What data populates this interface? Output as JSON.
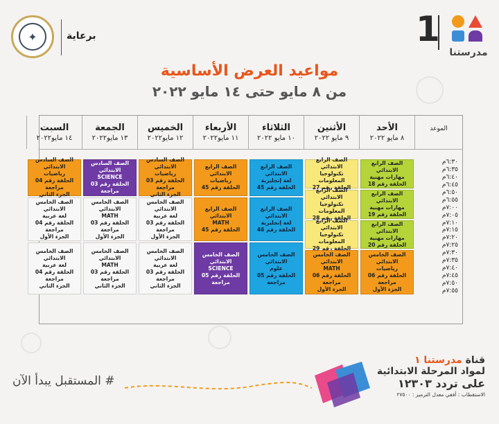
{
  "header": {
    "sponsor_text": "برعاية",
    "ministry_logo_icon": "ministry-seal-icon",
    "brand_number": "1",
    "brand_name": "مدرستنا",
    "brand_colors": [
      "#e94b35",
      "#f39a1c",
      "#3b8ed6",
      "#6e3aa3",
      "#b5d43a"
    ]
  },
  "title": "مواعيد العرض الأساسية",
  "subtitle": "من ٨ مايو حتى ١٤ مايو ٢٠٢٢",
  "table": {
    "time_header": "الموعد",
    "days": [
      {
        "name": "الأحد",
        "date": "٨ مايو ٢٠٢٢"
      },
      {
        "name": "الأثنين",
        "date": "٩ مايو ٢٠٢٢"
      },
      {
        "name": "الثلاثاء",
        "date": "١٠ مايو ٢٠٢٢"
      },
      {
        "name": "الأربعاء",
        "date": "١١ مايو٢٠٢٢"
      },
      {
        "name": "الخميس",
        "date": "١٢ مايو٢٠٢٢"
      },
      {
        "name": "الجمعة",
        "date": "١٣ مايو٢٠٢٢"
      },
      {
        "name": "السبت",
        "date": "١٤ مايو٢٠٢٢"
      }
    ],
    "times": [
      "٦:٣٠م",
      "٦:٣٥م",
      "٦:٤٠م",
      "٦:٤٥م",
      "٦:٥٠م",
      "٦:٥٥م",
      "٧:٠٠م",
      "٧:٠٥م",
      "٧:١٠م",
      "٧:١٥م",
      "٧:٢٠م",
      "٧:٢٥م",
      "٧:٣٠م",
      "٧:٣٥م",
      "٧:٤٠م",
      "٧:٤٥م",
      "٧:٥٠م",
      "٧:٥٥م"
    ],
    "columns": [
      [
        {
          "color": "green",
          "lines": [
            "الصف الرابع الابتدائي",
            "مهارات مهنية",
            "الحلقة رقم 18"
          ]
        },
        {
          "color": "green",
          "lines": [
            "الصف الرابع الابتدائي",
            "مهارات مهنية",
            "الحلقة رقم 19"
          ]
        },
        {
          "color": "green",
          "lines": [
            "الصف الرابع الابتدائي",
            "مهارات مهنية",
            "الحلقة رقم 20"
          ]
        },
        {
          "color": "orange",
          "lines": [
            "الصف الخامس الابتدائي",
            "رياضيات",
            "الحلقة رقم 06 مراجعة",
            "الجزء الأول"
          ]
        }
      ],
      [
        {
          "color": "yellow",
          "lines": [
            "الصف الرابع الابتدائي",
            "تكنولوجيا المعلومات",
            "الحلقة رقم 27"
          ]
        },
        {
          "color": "yellow",
          "lines": [
            "الصف الرابع الابتدائي",
            "تكنولوجيا المعلومات",
            "الحلقة رقم 28"
          ]
        },
        {
          "color": "yellow",
          "lines": [
            "الصف الرابع الابتدائي",
            "تكنولوجيا المعلومات",
            "الحلقة رقم 29"
          ]
        },
        {
          "color": "orange",
          "lines": [
            "الصف الخامس الابتدائي",
            "MATH",
            "الحلقة رقم 06 مراجعة",
            "الجزء الأول"
          ]
        }
      ],
      [
        {
          "color": "blue",
          "lines": [
            "الصف الرابع الابتدائي",
            "لغة إنجليزية",
            "الحلقة رقم 45"
          ]
        },
        {
          "color": "blue",
          "lines": [
            "الصف الرابع الابتدائي",
            "لغة إنجليزية",
            "الحلقة رقم 46"
          ]
        },
        {
          "color": "blue",
          "lines": [
            "الصف الخامس الابتدائي",
            "علوم",
            "الحلقة رقم 05 مراجعة"
          ]
        }
      ],
      [
        {
          "color": "orange",
          "lines": [
            "الصف الرابع الابتدائي",
            "رياضيات",
            "الحلقة رقم 45"
          ]
        },
        {
          "color": "orange",
          "lines": [
            "الصف الرابع الابتدائي",
            "MATH",
            "الحلقة رقم 45"
          ]
        },
        {
          "color": "purple",
          "lines": [
            "الصف الخامس الابتدائي",
            "SCIENCE",
            "الحلقة رقم 05 مراجعة"
          ]
        }
      ],
      [
        {
          "color": "orange",
          "lines": [
            "الصف السادس الابتدائي",
            "رياضيات",
            "الحلقة رقم 03 مراجعة",
            "الجزء الثاني"
          ]
        },
        {
          "color": "white",
          "lines": [
            "الصف الخامس الابتدائي",
            "لغة عربية",
            "الحلقة رقم 03 مراجعة",
            "الجزء الأول"
          ]
        },
        {
          "color": "white",
          "lines": [
            "الصف الخامس الابتدائي",
            "لغة عربية",
            "الحلقة رقم 03 مراجعة",
            "الجزء الثاني"
          ]
        }
      ],
      [
        {
          "color": "purple",
          "lines": [
            "الصف السادس الابتدائي",
            "SCIENCE",
            "الحلقة رقم 03 مراجعة"
          ]
        },
        {
          "color": "white",
          "lines": [
            "الصف الخامس الابتدائي",
            "MATH",
            "الحلقة رقم 03 مراجعة",
            "الجزء الأول"
          ]
        },
        {
          "color": "white",
          "lines": [
            "الصف الخامس الابتدائي",
            "MATH",
            "الحلقة رقم 03 مراجعة",
            "الجزء الثاني"
          ]
        }
      ],
      [
        {
          "color": "orange",
          "lines": [
            "الصف السادس الابتدائي",
            "رياضيات",
            "الحلقة رقم 04 مراجعة",
            "الجزء الثاني"
          ]
        },
        {
          "color": "white",
          "lines": [
            "الصف الخامس الابتدائي",
            "لغة عربية",
            "الحلقة رقم 04 مراجعة",
            "الجزء الأول"
          ]
        },
        {
          "color": "white",
          "lines": [
            "الصف الخامس الابتدائي",
            "لغة عربية",
            "الحلقة رقم 04 مراجعة",
            "الجزء الثاني"
          ]
        }
      ]
    ]
  },
  "footer": {
    "channel_label": "قناة",
    "channel_name": "مدرستنا ١",
    "channel_line2": "لمواد المرحلة الابتدائية",
    "channel_line3": "على تردد ١٢٣٠٣",
    "reception": "الاستقطاب : أفقي معدل الترميز : ٢٧٥٠٠",
    "motto": "# المستقبل يبدأ الآن"
  }
}
